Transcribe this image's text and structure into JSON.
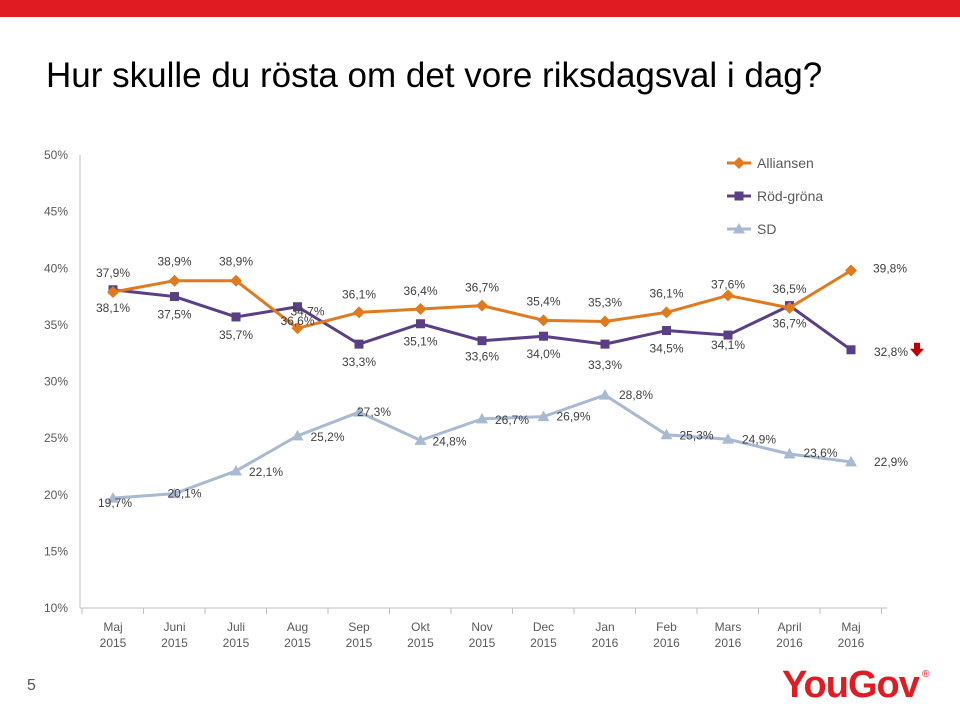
{
  "title": "Hur skulle du rösta om det vore riksdagsval i dag?",
  "slide_number": "5",
  "brand": "YouGov",
  "colors": {
    "alliansen": "#e07a1f",
    "rodgrona": "#5b3f86",
    "sd": "#a8b9d2",
    "down_arrow": "#c00000",
    "accent": "#e01b22"
  },
  "chart_data": {
    "type": "line",
    "title": "Hur skulle du rösta om det vore riksdagsval i dag?",
    "ylim": [
      10,
      50
    ],
    "yticks": [
      "10%",
      "15%",
      "20%",
      "25%",
      "30%",
      "35%",
      "40%",
      "45%",
      "50%"
    ],
    "ytick_values": [
      10,
      15,
      20,
      25,
      30,
      35,
      40,
      45,
      50
    ],
    "categories": [
      [
        "Maj",
        "2015"
      ],
      [
        "Juni",
        "2015"
      ],
      [
        "Juli",
        "2015"
      ],
      [
        "Aug",
        "2015"
      ],
      [
        "Sep",
        "2015"
      ],
      [
        "Okt",
        "2015"
      ],
      [
        "Nov",
        "2015"
      ],
      [
        "Dec",
        "2015"
      ],
      [
        "Jan",
        "2016"
      ],
      [
        "Feb",
        "2016"
      ],
      [
        "Mars",
        "2016"
      ],
      [
        "April",
        "2016"
      ],
      [
        "Maj",
        "2016"
      ]
    ],
    "legend_position": "top-right",
    "series": [
      {
        "name": "Alliansen",
        "marker": "diamond",
        "color": "#e07a1f",
        "values": [
          37.9,
          38.9,
          38.9,
          34.7,
          36.1,
          36.4,
          36.7,
          35.4,
          35.3,
          36.1,
          37.6,
          36.5,
          39.8
        ],
        "labels": [
          "37,9%",
          "38,9%",
          "38,9%",
          "34,7%",
          "36,1%",
          "36,4%",
          "36,7%",
          "35,4%",
          "35,3%",
          "36,1%",
          "37,6%",
          "36,5%",
          "39,8%"
        ]
      },
      {
        "name": "Röd-gröna",
        "marker": "square",
        "color": "#5b3f86",
        "values": [
          38.1,
          37.5,
          35.7,
          36.6,
          33.3,
          35.1,
          33.6,
          34.0,
          33.3,
          34.5,
          34.1,
          36.7,
          32.8
        ],
        "labels": [
          "38,1%",
          "37,5%",
          "35,7%",
          "36,6%",
          "33,3%",
          "35,1%",
          "33,6%",
          "34,0%",
          "33,3%",
          "34,5%",
          "34,1%",
          "36,7%",
          "32,8%"
        ]
      },
      {
        "name": "SD",
        "marker": "triangle",
        "color": "#a8b9d2",
        "values": [
          19.7,
          20.1,
          22.1,
          25.2,
          27.3,
          24.8,
          26.7,
          26.9,
          28.8,
          25.3,
          24.9,
          23.6,
          22.9
        ],
        "labels": [
          "19,7%",
          "20,1%",
          "22,1%",
          "25,2%",
          "27,3%",
          "24,8%",
          "26,7%",
          "26,9%",
          "28,8%",
          "25,3%",
          "24,9%",
          "23,6%",
          "22,9%"
        ]
      }
    ],
    "annotations": [
      {
        "series": "Röd-gröna",
        "index": 12,
        "symbol": "down-arrow",
        "meaning": "significant decrease"
      }
    ]
  }
}
